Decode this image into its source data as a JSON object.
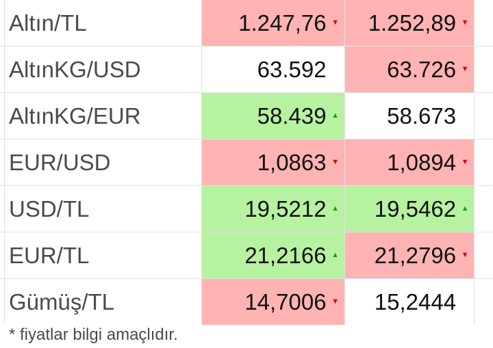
{
  "rows": [
    {
      "pair": "Altın/TL",
      "buy": "1.247,76",
      "buy_trend": "down",
      "sell": "1.252,89",
      "sell_trend": "down"
    },
    {
      "pair": "AltınKG/USD",
      "buy": "63.592",
      "buy_trend": "none",
      "sell": "63.726",
      "sell_trend": "down"
    },
    {
      "pair": "AltınKG/EUR",
      "buy": "58.439",
      "buy_trend": "up",
      "sell": "58.673",
      "sell_trend": "none"
    },
    {
      "pair": "EUR/USD",
      "buy": "1,0863",
      "buy_trend": "down",
      "sell": "1,0894",
      "sell_trend": "down"
    },
    {
      "pair": "USD/TL",
      "buy": "19,5212",
      "buy_trend": "up",
      "sell": "19,5462",
      "sell_trend": "up"
    },
    {
      "pair": "EUR/TL",
      "buy": "21,2166",
      "buy_trend": "up",
      "sell": "21,2796",
      "sell_trend": "down"
    },
    {
      "pair": "Gümüş/TL",
      "buy": "14,7006",
      "buy_trend": "down",
      "sell": "15,2444",
      "sell_trend": "none"
    }
  ],
  "footnote": "* fiyatlar bilgi amaçlıdır.",
  "colors": {
    "down_bg": "#ffb3b3",
    "up_bg": "#b6f2a0",
    "down_arrow": "#d40000",
    "up_arrow": "#1a9a1a"
  },
  "icons": {
    "down": "triangle-down-icon",
    "up": "triangle-up-icon"
  }
}
